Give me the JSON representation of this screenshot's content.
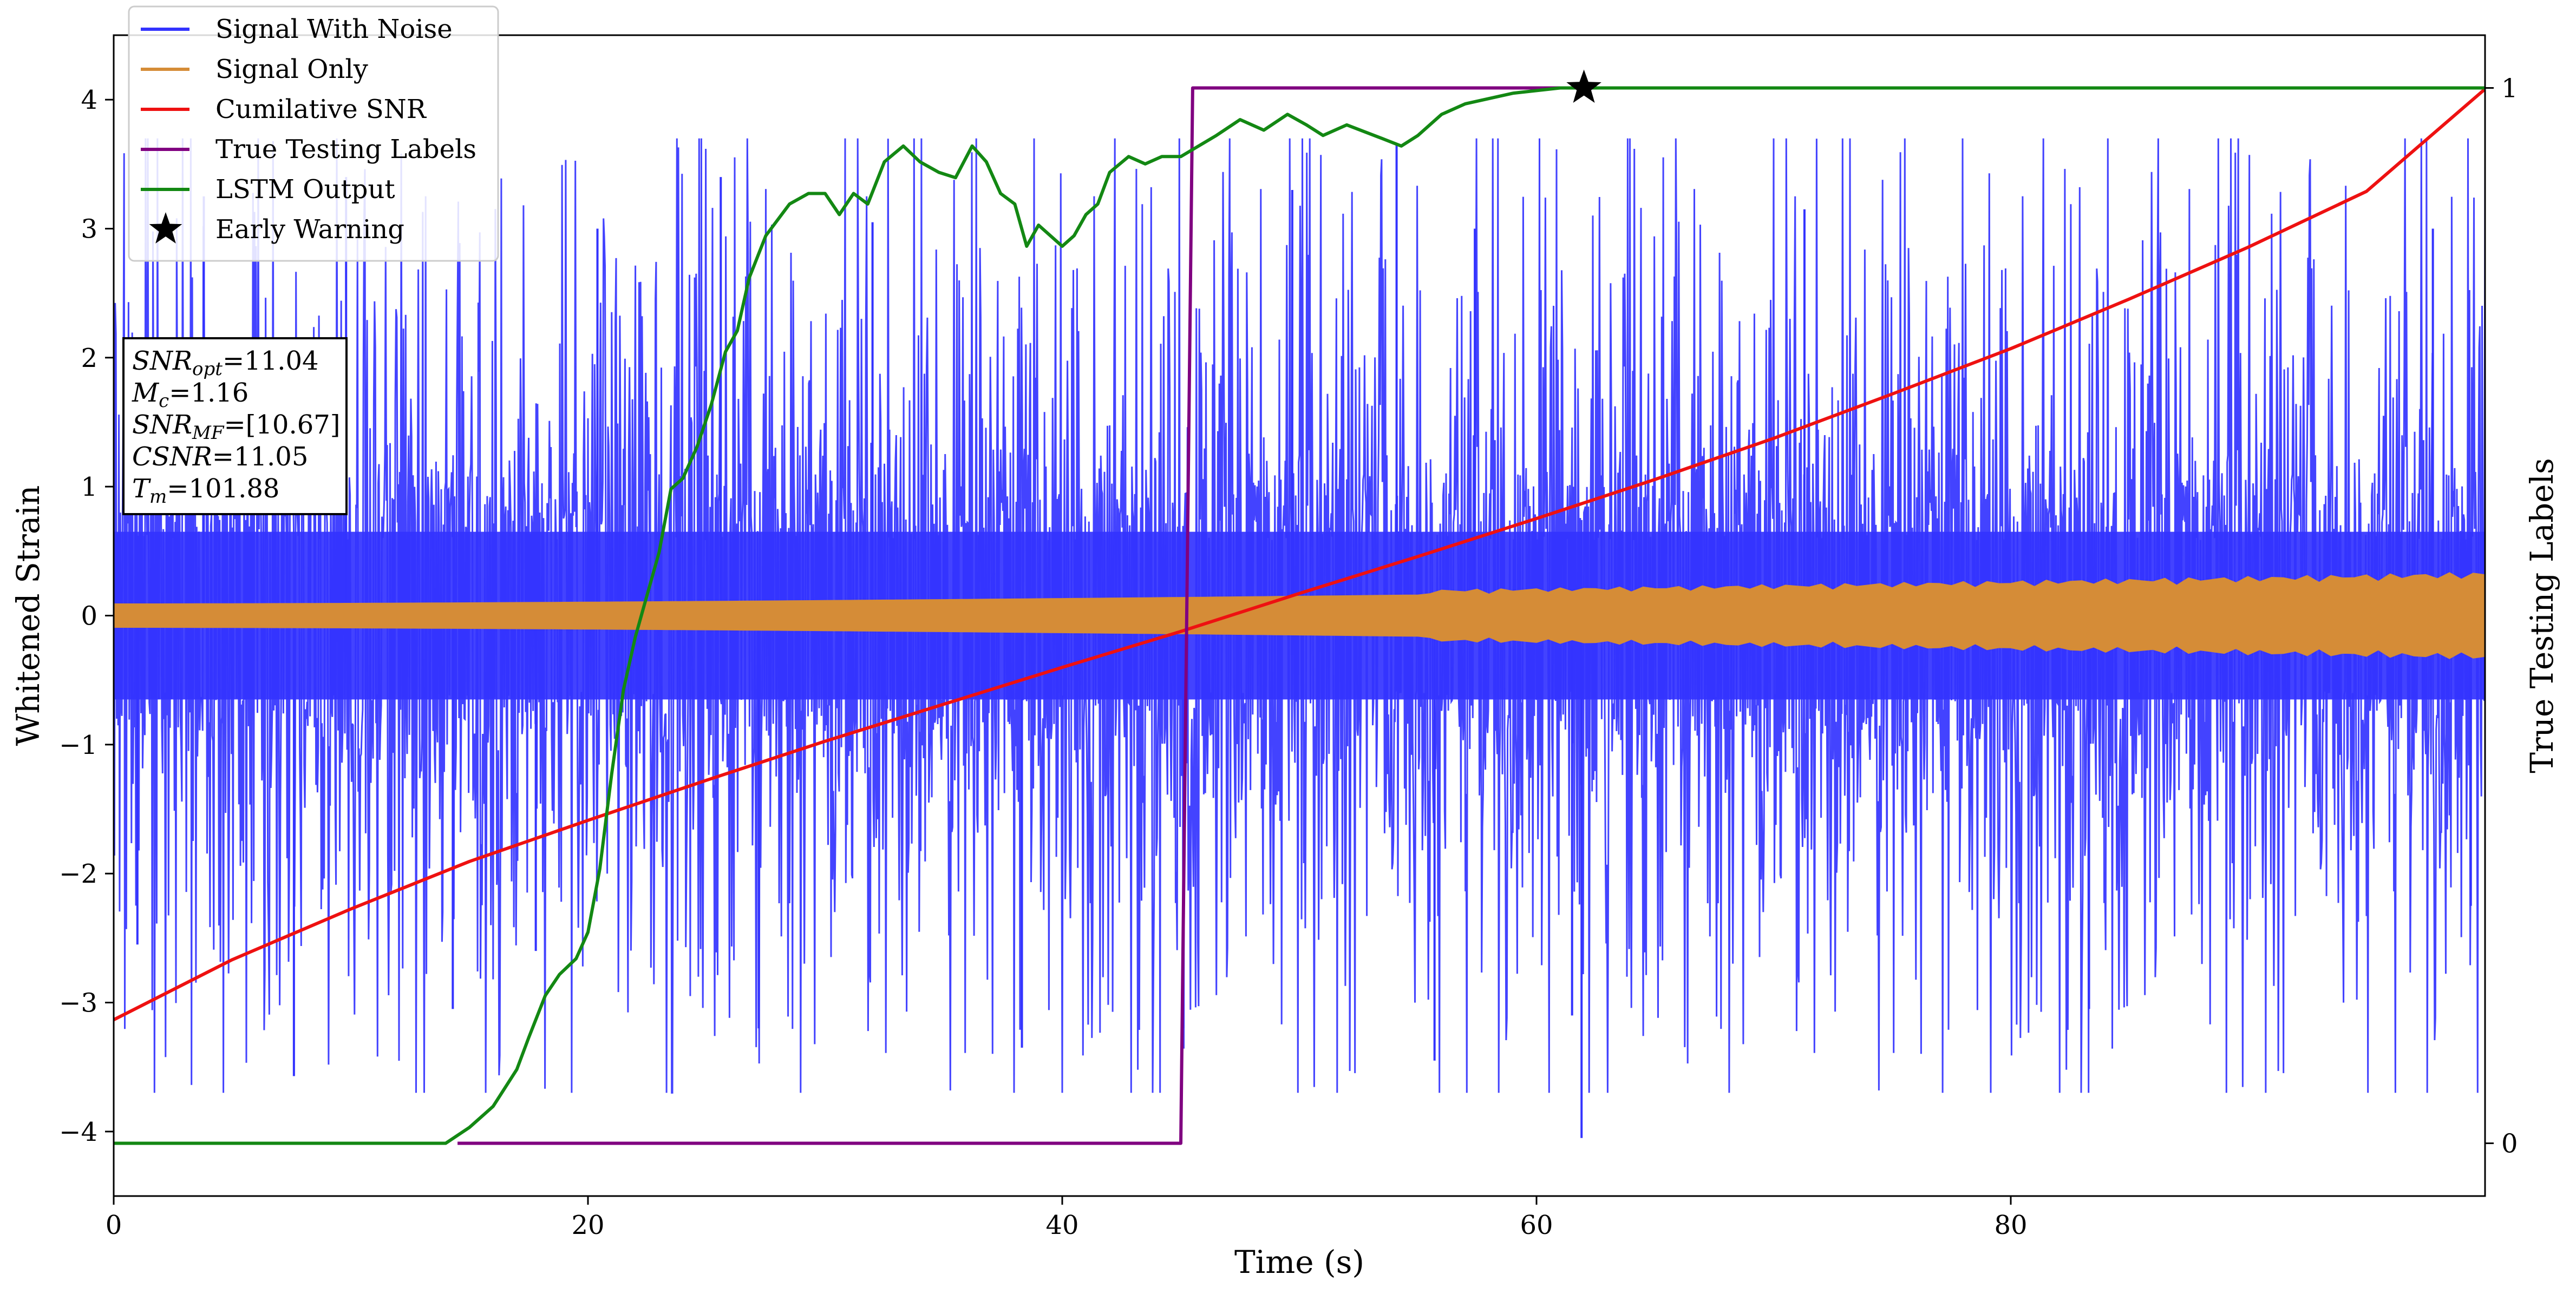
{
  "chart_data": {
    "type": "line",
    "xlabel": "Time (s)",
    "ylabel": "Whitened Strain",
    "y2label": "True Testing Labels",
    "xlim": [
      0,
      100
    ],
    "ylim": [
      -4.5,
      4.5
    ],
    "y2lim": [
      -0.05,
      1.05
    ],
    "xticks": [
      0,
      20,
      40,
      60,
      80
    ],
    "yticks": [
      -4,
      -3,
      -2,
      -1,
      0,
      1,
      2,
      3,
      4
    ],
    "y2ticks": [
      0,
      1
    ],
    "legend_position": "upper-left",
    "grid": false,
    "series": [
      {
        "name": "Signal With Noise",
        "axis": "left",
        "color": "#3333ff",
        "kind": "noise-band",
        "core_amplitude": 0.65,
        "max_amplitude": 3.7,
        "spikes": [
          [
            1.0,
            -2.55
          ],
          [
            3.8,
            3.25
          ],
          [
            7.6,
            -3.57
          ],
          [
            9.8,
            3.4
          ],
          [
            14.3,
            -3.05
          ],
          [
            17.8,
            -2.6
          ],
          [
            20.4,
            3.0
          ],
          [
            25.6,
            3.4
          ],
          [
            27.2,
            -3.2
          ],
          [
            32.0,
            3.05
          ],
          [
            38.3,
            -3.35
          ],
          [
            45.1,
            -3.2
          ],
          [
            49.7,
            3.3
          ],
          [
            54.1,
            3.65
          ],
          [
            55.7,
            -3.45
          ],
          [
            57.4,
            3.0
          ],
          [
            61.5,
            -3.1
          ],
          [
            61.9,
            -4.05
          ],
          [
            71.3,
            3.15
          ],
          [
            83.3,
            -3.05
          ],
          [
            97.8,
            3.0
          ],
          [
            99.4,
            -2.25
          ]
        ]
      },
      {
        "name": "Signal Only",
        "axis": "left",
        "color": "#d58c37",
        "kind": "chirp-envelope",
        "amplitude_start": 0.09,
        "amplitude_end": 0.27
      },
      {
        "name": "Cumilative SNR",
        "axis": "right",
        "color": "#ee1111",
        "x": [
          0,
          5,
          10,
          15,
          20,
          25,
          30,
          35,
          40,
          45,
          50,
          55,
          60,
          65,
          70,
          75,
          80,
          85,
          90,
          95,
          100
        ],
        "y": [
          0.117,
          0.174,
          0.222,
          0.267,
          0.306,
          0.344,
          0.381,
          0.416,
          0.451,
          0.485,
          0.521,
          0.556,
          0.592,
          0.629,
          0.668,
          0.71,
          0.753,
          0.8,
          0.849,
          0.902,
          0.999
        ]
      },
      {
        "name": "True Testing Labels",
        "axis": "right",
        "color": "#800080",
        "x": [
          14.5,
          45.0,
          45.5,
          100
        ],
        "y": [
          0,
          0,
          1,
          1
        ]
      },
      {
        "name": "LSTM Output",
        "axis": "right",
        "color": "#138813",
        "x": [
          0,
          14.0,
          15.0,
          16.0,
          17.0,
          17.5,
          18.2,
          18.8,
          19.5,
          20.0,
          20.5,
          21.0,
          21.5,
          22.0,
          22.5,
          23.0,
          23.5,
          24.0,
          24.6,
          25.2,
          25.8,
          26.3,
          26.8,
          27.5,
          28.5,
          29.3,
          30.0,
          30.6,
          31.2,
          31.8,
          32.5,
          33.3,
          34.0,
          34.8,
          35.5,
          36.2,
          36.8,
          37.4,
          38.0,
          38.5,
          39.0,
          39.5,
          40.0,
          40.5,
          41.0,
          41.5,
          42.0,
          42.8,
          43.5,
          44.2,
          45.0,
          46.5,
          47.5,
          48.5,
          49.5,
          50.3,
          51.0,
          52.0,
          53.5,
          54.3,
          55.0,
          56.0,
          57.0,
          59.0,
          61.0,
          62.0,
          63.0,
          66.0,
          70.0,
          80.0,
          90.0,
          100.0
        ],
        "y": [
          0.0,
          0.0,
          0.015,
          0.035,
          0.07,
          0.1,
          0.14,
          0.16,
          0.175,
          0.2,
          0.26,
          0.35,
          0.43,
          0.48,
          0.52,
          0.56,
          0.62,
          0.63,
          0.66,
          0.7,
          0.75,
          0.77,
          0.82,
          0.86,
          0.89,
          0.9,
          0.9,
          0.88,
          0.9,
          0.89,
          0.93,
          0.945,
          0.93,
          0.92,
          0.915,
          0.945,
          0.93,
          0.9,
          0.89,
          0.85,
          0.87,
          0.86,
          0.85,
          0.86,
          0.88,
          0.89,
          0.92,
          0.935,
          0.928,
          0.935,
          0.935,
          0.955,
          0.97,
          0.96,
          0.975,
          0.965,
          0.955,
          0.965,
          0.952,
          0.945,
          0.955,
          0.975,
          0.985,
          0.995,
          1.0,
          1.0,
          1.0,
          1.0,
          1.0,
          1.0,
          1.0,
          1.0
        ]
      }
    ],
    "early_warning": {
      "name": "Early Warning",
      "x": 62.0,
      "y2": 1.0,
      "color": "#000000"
    },
    "info_box": {
      "position": "left",
      "lines": [
        {
          "var": "SNR",
          "sub": "opt",
          "value": "=11.04"
        },
        {
          "var": "M",
          "sub": "c",
          "value": "=1.16"
        },
        {
          "var": "SNR",
          "sub": "MF",
          "value": "=[10.67]"
        },
        {
          "var": "CSNR",
          "sub": "",
          "value": "=11.05"
        },
        {
          "var": "T",
          "sub": "m",
          "value": "=101.88"
        }
      ]
    }
  }
}
